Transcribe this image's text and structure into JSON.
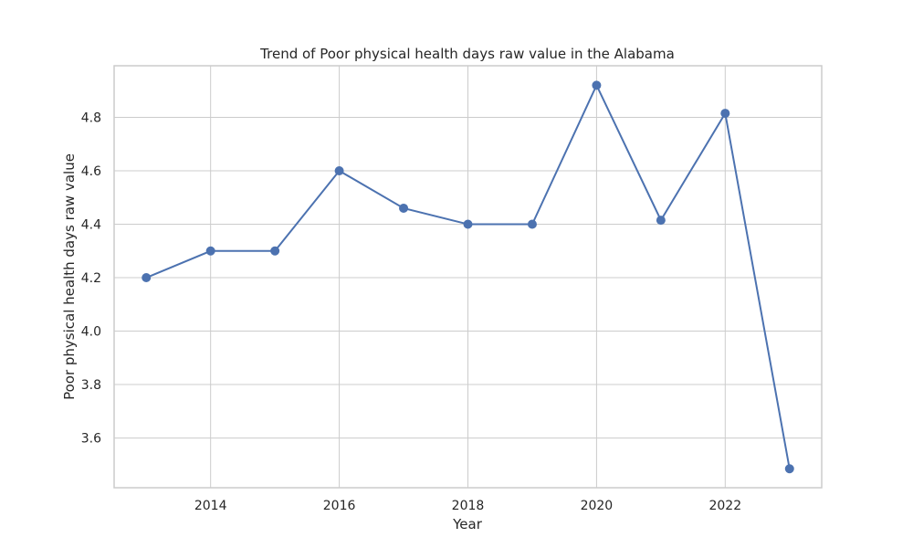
{
  "chart_data": {
    "type": "line",
    "title": "Trend of Poor physical health days raw value in the Alabama",
    "xlabel": "Year",
    "ylabel": "Poor physical health days raw value",
    "x": [
      2013,
      2014,
      2015,
      2016,
      2017,
      2018,
      2019,
      2020,
      2021,
      2022,
      2023
    ],
    "series": [
      {
        "values": [
          4.2,
          4.3,
          4.3,
          4.6,
          4.46,
          4.4,
          4.4,
          4.92,
          4.415,
          4.815,
          3.485
        ],
        "color": "#4c72b0",
        "marker": "circle"
      }
    ],
    "xlim": [
      2012.5,
      2023.5
    ],
    "ylim": [
      3.414,
      4.993
    ],
    "xticks": [
      "2014",
      "2016",
      "2018",
      "2020",
      "2022"
    ],
    "yticks": [
      "3.6",
      "3.8",
      "4.0",
      "4.2",
      "4.4",
      "4.6",
      "4.8"
    ],
    "grid": true,
    "legend": "none"
  }
}
